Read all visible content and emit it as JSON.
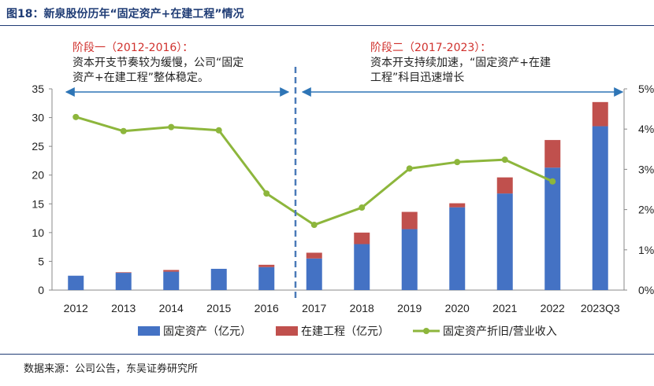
{
  "figure": {
    "title": "图18：新泉股份历年“固定资产+在建工程”情况",
    "source": "数据来源：公司公告，东吴证券研究所"
  },
  "annotations": {
    "phase1": {
      "title": "阶段一（2012-2016）：",
      "line1": "资本开支节奏较为缓慢，公司“固定",
      "line2": "资产+在建工程”整体稳定。"
    },
    "phase2": {
      "title": "阶段二（2017-2023）：",
      "line1": "资本开支持续加速，“固定资产+在建",
      "line2": "工程”科目迅速增长"
    }
  },
  "colors": {
    "fixed_assets": "#4472c4",
    "construction": "#c0504d",
    "ratio_line": "#8db63c",
    "arrow": "#2e75b6",
    "divider": "#4a7ab8"
  },
  "chart_data": {
    "type": "bar",
    "title": "新泉股份历年“固定资产+在建工程”情况",
    "categories": [
      "2012",
      "2013",
      "2014",
      "2015",
      "2016",
      "2017",
      "2018",
      "2019",
      "2020",
      "2021",
      "2022",
      "2023Q3"
    ],
    "series": [
      {
        "name": "固定资产（亿元）",
        "type": "bar",
        "stack": "total",
        "axis": "left",
        "values": [
          2.5,
          3.0,
          3.2,
          3.7,
          4.0,
          5.5,
          8.0,
          10.6,
          14.4,
          16.8,
          21.3,
          28.5
        ]
      },
      {
        "name": "在建工程（亿元）",
        "type": "bar",
        "stack": "total",
        "axis": "left",
        "values": [
          0.0,
          0.1,
          0.3,
          0.0,
          0.4,
          1.0,
          2.0,
          3.0,
          0.7,
          2.8,
          4.8,
          4.2
        ]
      },
      {
        "name": "固定资产折旧/营业收入",
        "type": "line",
        "axis": "right",
        "unit": "%",
        "values": [
          4.3,
          3.95,
          4.05,
          3.97,
          2.4,
          1.62,
          2.05,
          3.02,
          3.18,
          3.24,
          2.7,
          null
        ]
      }
    ],
    "ylim_left": [
      0,
      35
    ],
    "yticks_left": [
      0,
      5,
      10,
      15,
      20,
      25,
      30,
      35
    ],
    "ylim_right": [
      0,
      5
    ],
    "yticks_right": [
      "0%",
      "1%",
      "2%",
      "3%",
      "4%",
      "5%"
    ],
    "legend_position": "bottom",
    "grid": false
  }
}
